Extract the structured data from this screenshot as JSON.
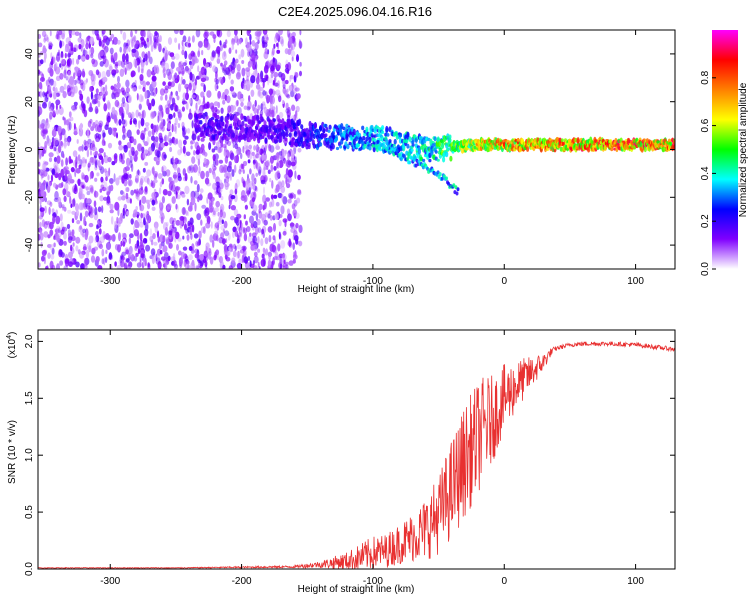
{
  "title": "C2E4.2025.096.04.16.R16",
  "chart_data": [
    {
      "type": "heatmap",
      "xlabel": "Height of straight line (km)",
      "ylabel": "Frequency (Hz)",
      "xlim": [
        -355,
        130
      ],
      "ylim": [
        -50,
        50
      ],
      "xticks": [
        -300,
        -200,
        -100,
        0,
        100
      ],
      "yticks": [
        -40,
        -20,
        0,
        20,
        40
      ],
      "colorbar": {
        "label": "Normalized spectral amplitude",
        "range": [
          0,
          1
        ],
        "ticks": [
          "0.0",
          "0.2",
          "0.4",
          "0.6",
          "0.8"
        ],
        "tick_values": [
          0.0,
          0.2,
          0.4,
          0.6,
          0.8
        ],
        "colormap": [
          "#ffffff",
          "#8000ff",
          "#0000ff",
          "#00ffff",
          "#00ff00",
          "#ffff00",
          "#ff8000",
          "#ff0000",
          "#ff00ff"
        ]
      },
      "features": {
        "noise_region_x": [
          -355,
          -155
        ],
        "noise_amplitude": 0.12,
        "signal_track": [
          {
            "x": -230,
            "f": 10,
            "amp": 0.2
          },
          {
            "x": -200,
            "f": 9,
            "amp": 0.18
          },
          {
            "x": -170,
            "f": 8,
            "amp": 0.2
          },
          {
            "x": -150,
            "f": 6,
            "amp": 0.25
          },
          {
            "x": -120,
            "f": 5,
            "amp": 0.35
          },
          {
            "x": -100,
            "f": 5,
            "amp": 0.4
          },
          {
            "x": -80,
            "f": 3,
            "amp": 0.4
          },
          {
            "x": -60,
            "f": 0,
            "amp": 0.45
          },
          {
            "x": -40,
            "f": 1,
            "amp": 0.55
          },
          {
            "x": -20,
            "f": 2,
            "amp": 0.7
          },
          {
            "x": 0,
            "f": 2,
            "amp": 0.8
          },
          {
            "x": 30,
            "f": 2,
            "amp": 0.8
          },
          {
            "x": 60,
            "f": 2,
            "amp": 0.85
          },
          {
            "x": 100,
            "f": 2,
            "amp": 0.85
          },
          {
            "x": 130,
            "f": 2,
            "amp": 0.85
          }
        ],
        "branch_track": [
          {
            "x": -100,
            "f": 3
          },
          {
            "x": -70,
            "f": -5
          },
          {
            "x": -50,
            "f": -10
          },
          {
            "x": -35,
            "f": -18
          }
        ]
      }
    },
    {
      "type": "line",
      "xlabel": "Height of straight line (km)",
      "ylabel": "SNR (10 * v/v)",
      "yscale_label": "(x10",
      "yscale_exp": "4",
      "xlim": [
        -355,
        130
      ],
      "ylim": [
        0,
        2.1
      ],
      "xticks": [
        -300,
        -200,
        -100,
        0,
        100
      ],
      "yticks": [
        "0.0",
        "0.5",
        "1.0",
        "1.5",
        "2.0"
      ],
      "ytick_values": [
        0,
        0.5,
        1.0,
        1.5,
        2.0
      ],
      "series": [
        {
          "color": "#e83030",
          "x": [
            -355,
            -250,
            -160,
            -140,
            -120,
            -110,
            -100,
            -90,
            -80,
            -70,
            -60,
            -50,
            -40,
            -30,
            -20,
            -15,
            -10,
            0,
            10,
            20,
            30,
            35,
            40,
            50,
            60,
            80,
            100,
            115,
            130
          ],
          "y": [
            0.01,
            0.01,
            0.02,
            0.04,
            0.07,
            0.1,
            0.14,
            0.16,
            0.22,
            0.28,
            0.35,
            0.48,
            0.7,
            0.95,
            1.15,
            1.25,
            1.3,
            1.5,
            1.62,
            1.72,
            1.82,
            1.9,
            1.94,
            1.97,
            1.98,
            1.98,
            1.97,
            1.95,
            1.93
          ],
          "noise": [
            0.003,
            0.003,
            0.01,
            0.03,
            0.08,
            0.12,
            0.15,
            0.15,
            0.18,
            0.22,
            0.28,
            0.35,
            0.45,
            0.5,
            0.5,
            0.45,
            0.4,
            0.3,
            0.22,
            0.15,
            0.08,
            0.04,
            0.02,
            0.02,
            0.02,
            0.02,
            0.02,
            0.02,
            0.02
          ]
        }
      ]
    }
  ]
}
